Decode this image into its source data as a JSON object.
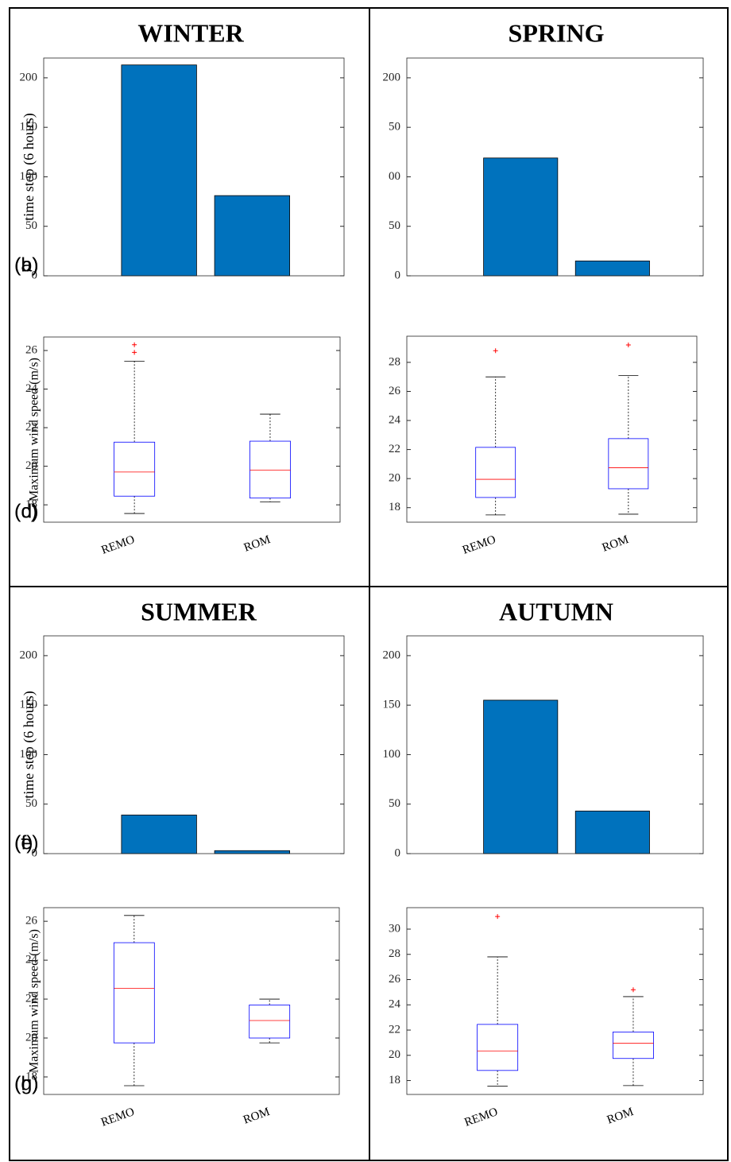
{
  "chart_data": [
    {
      "type": "bar",
      "title": "WINTER",
      "panel_label": "(a)",
      "ylabel": "time step (6 hours)",
      "categories": [
        null,
        null
      ],
      "values": [
        213,
        81
      ],
      "color": "#0072bd",
      "ylim": [
        0,
        220
      ],
      "yticks": [
        0,
        50,
        100,
        150,
        200
      ]
    },
    {
      "type": "bar",
      "title": "SPRING",
      "panel_label": "(b)",
      "categories": [
        null,
        null
      ],
      "values": [
        119,
        15
      ],
      "color": "#0072bd",
      "ylim": [
        0,
        220
      ],
      "yticks": [
        0,
        {
          "value": 50,
          "label": "50"
        },
        {
          "value": 100,
          "label": "00"
        },
        {
          "value": 150,
          "label": "50"
        },
        200
      ]
    },
    {
      "type": "box",
      "panel_label": "(c)",
      "ylabel": "Maximum wind speed (m/s)",
      "categories": [
        "REMO",
        "ROM"
      ],
      "box_color": "#0000ff",
      "median_color": "#ff0000",
      "outlier_color": "#ff0000",
      "boxes": [
        {
          "whisker_low": 17.55,
          "q1": 18.45,
          "median": 19.7,
          "q3": 21.25,
          "whisker_high": 25.45,
          "outliers": [
            26.3,
            25.9
          ]
        },
        {
          "whisker_low": 18.15,
          "q1": 18.35,
          "median": 19.8,
          "q3": 21.3,
          "whisker_high": 22.7,
          "outliers": []
        }
      ],
      "ylim": [
        17.1,
        26.7
      ],
      "yticks": [
        18,
        20,
        22,
        24,
        26
      ]
    },
    {
      "type": "box",
      "panel_label": "(d)",
      "categories": [
        "REMO",
        "ROM"
      ],
      "box_color": "#0000ff",
      "median_color": "#ff0000",
      "outlier_color": "#ff0000",
      "boxes": [
        {
          "whisker_low": 17.5,
          "q1": 18.7,
          "median": 19.95,
          "q3": 22.15,
          "whisker_high": 27,
          "outliers": [
            28.8
          ]
        },
        {
          "whisker_low": 17.55,
          "q1": 19.3,
          "median": 20.75,
          "q3": 22.75,
          "whisker_high": 27.1,
          "outliers": [
            29.2
          ]
        }
      ],
      "ylim": [
        17,
        29.8
      ],
      "yticks": [
        18,
        20,
        22,
        24,
        26,
        28
      ]
    },
    {
      "type": "bar",
      "title": "SUMMER",
      "panel_label": "(e)",
      "ylabel": "time step (6 hours)",
      "categories": [
        null,
        null
      ],
      "values": [
        39,
        3
      ],
      "color": "#0072bd",
      "ylim": [
        0,
        220
      ],
      "yticks": [
        0,
        50,
        100,
        150,
        200
      ]
    },
    {
      "type": "bar",
      "title": "AUTUMN",
      "panel_label": "(f)",
      "categories": [
        null,
        null
      ],
      "values": [
        155,
        43
      ],
      "color": "#0072bd",
      "ylim": [
        0,
        220
      ],
      "yticks": [
        0,
        50,
        100,
        150,
        200
      ]
    },
    {
      "type": "box",
      "panel_label": "(g)",
      "ylabel": "Maximum wind speed (m/s)",
      "categories": [
        "REMO",
        "ROM"
      ],
      "box_color": "#0000ff",
      "median_color": "#ff0000",
      "outlier_color": "#ff0000",
      "boxes": [
        {
          "whisker_low": 17.55,
          "q1": 19.75,
          "median": 22.55,
          "q3": 24.9,
          "whisker_high": 26.3,
          "outliers": []
        },
        {
          "whisker_low": 19.75,
          "q1": 20,
          "median": 20.9,
          "q3": 21.7,
          "whisker_high": 22,
          "outliers": []
        }
      ],
      "ylim": [
        17.1,
        26.7
      ],
      "yticks": [
        18,
        20,
        22,
        24,
        26
      ]
    },
    {
      "type": "box",
      "panel_label": "(h)",
      "categories": [
        "REMO",
        "ROM"
      ],
      "box_color": "#0000ff",
      "median_color": "#ff0000",
      "outlier_color": "#ff0000",
      "boxes": [
        {
          "whisker_low": 17.55,
          "q1": 18.8,
          "median": 20.35,
          "q3": 22.45,
          "whisker_high": 27.8,
          "outliers": [
            31
          ]
        },
        {
          "whisker_low": 17.6,
          "q1": 19.75,
          "median": 20.95,
          "q3": 21.85,
          "whisker_high": 24.65,
          "outliers": [
            25.2
          ]
        }
      ],
      "ylim": [
        16.9,
        31.7
      ],
      "yticks": [
        18,
        20,
        22,
        24,
        26,
        28,
        30
      ]
    }
  ]
}
